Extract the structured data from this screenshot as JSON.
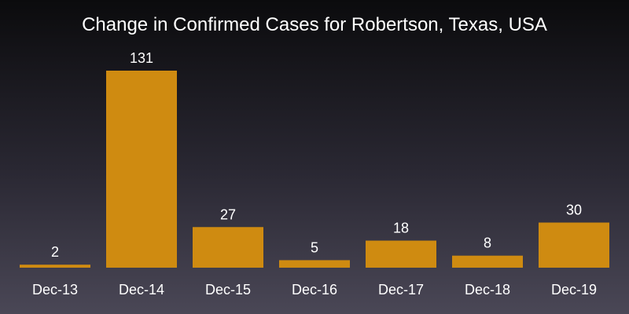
{
  "chart_data": {
    "type": "bar",
    "title": "Change in Confirmed Cases for Robertson, Texas, USA",
    "xlabel": "",
    "ylabel": "",
    "categories": [
      "Dec-13",
      "Dec-14",
      "Dec-15",
      "Dec-16",
      "Dec-17",
      "Dec-18",
      "Dec-19"
    ],
    "values": [
      2,
      131,
      27,
      5,
      18,
      8,
      30
    ],
    "ylim": [
      0,
      131
    ],
    "grid": false,
    "data_labels": true,
    "colors": {
      "bar": "#cf8b11",
      "text": "#ffffff"
    }
  }
}
